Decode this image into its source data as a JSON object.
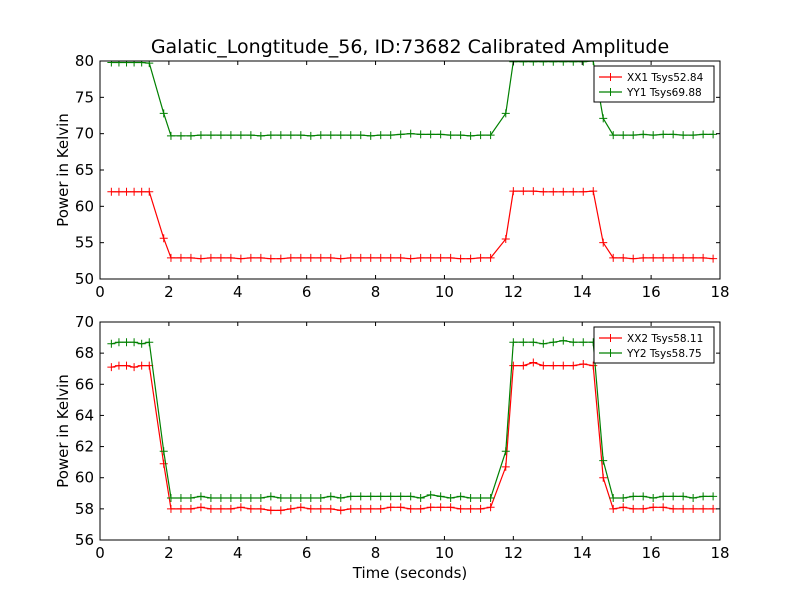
{
  "title": "Galatic_Longtitude_56, ID:73682 Calibrated Amplitude",
  "colors": {
    "xx": "#ff0000",
    "yy": "#008000",
    "frame": "#000000"
  },
  "chart_data": [
    {
      "type": "line",
      "ylabel": "Power in Kelvin",
      "xlabel": "",
      "xlim": [
        0,
        18
      ],
      "ylim": [
        50,
        80
      ],
      "xticks": [
        0,
        2,
        4,
        6,
        8,
        10,
        12,
        14,
        16,
        18
      ],
      "yticks": [
        50,
        55,
        60,
        65,
        70,
        75,
        80
      ],
      "legend_position": "top-right",
      "x": [
        0.33,
        0.55,
        0.77,
        0.99,
        1.21,
        1.43,
        1.85,
        2.06,
        2.35,
        2.64,
        2.93,
        3.22,
        3.51,
        3.8,
        4.09,
        4.38,
        4.67,
        4.96,
        5.25,
        5.54,
        5.83,
        6.12,
        6.41,
        6.7,
        6.99,
        7.28,
        7.57,
        7.86,
        8.15,
        8.44,
        8.73,
        9.02,
        9.31,
        9.6,
        9.89,
        10.18,
        10.47,
        10.76,
        11.05,
        11.34,
        11.78,
        12.0,
        12.29,
        12.58,
        12.87,
        13.16,
        13.45,
        13.74,
        14.03,
        14.32,
        14.61,
        14.9,
        15.19,
        15.48,
        15.77,
        16.06,
        16.35,
        16.64,
        16.93,
        17.22,
        17.51,
        17.8
      ],
      "series": [
        {
          "name": "XX1 Tsys52.84",
          "color": "#ff0000",
          "values": [
            62.0,
            62.0,
            62.0,
            62.0,
            62.0,
            62.0,
            55.6,
            52.9,
            52.9,
            52.9,
            52.8,
            52.9,
            52.9,
            52.9,
            52.8,
            52.9,
            52.9,
            52.8,
            52.8,
            52.9,
            52.9,
            52.9,
            52.9,
            52.9,
            52.8,
            52.9,
            52.9,
            52.9,
            52.9,
            52.9,
            52.9,
            52.8,
            52.9,
            52.9,
            52.9,
            52.9,
            52.8,
            52.8,
            52.9,
            52.9,
            55.5,
            62.1,
            62.1,
            62.1,
            62.0,
            62.0,
            62.0,
            62.0,
            62.0,
            62.1,
            55.0,
            52.9,
            52.9,
            52.8,
            52.9,
            52.9,
            52.9,
            52.9,
            52.9,
            52.9,
            52.9,
            52.8
          ]
        },
        {
          "name": "YY1 Tsys69.88",
          "color": "#008000",
          "values": [
            79.8,
            79.8,
            79.8,
            79.8,
            79.8,
            79.7,
            72.8,
            69.7,
            69.7,
            69.7,
            69.8,
            69.8,
            69.8,
            69.8,
            69.8,
            69.8,
            69.7,
            69.8,
            69.8,
            69.8,
            69.8,
            69.7,
            69.8,
            69.8,
            69.8,
            69.8,
            69.8,
            69.7,
            69.8,
            69.8,
            69.9,
            70.0,
            69.9,
            69.9,
            69.9,
            69.8,
            69.8,
            69.7,
            69.8,
            69.8,
            72.8,
            79.9,
            79.9,
            79.9,
            79.9,
            79.9,
            79.9,
            79.9,
            79.9,
            80.0,
            72.1,
            69.8,
            69.8,
            69.8,
            69.9,
            69.8,
            69.9,
            69.9,
            69.8,
            69.8,
            69.9,
            69.9
          ]
        }
      ]
    },
    {
      "type": "line",
      "ylabel": "Power in Kelvin",
      "xlabel": "Time (seconds)",
      "xlim": [
        0,
        18
      ],
      "ylim": [
        56,
        70
      ],
      "xticks": [
        0,
        2,
        4,
        6,
        8,
        10,
        12,
        14,
        16,
        18
      ],
      "yticks": [
        56,
        58,
        60,
        62,
        64,
        66,
        68,
        70
      ],
      "legend_position": "top-right",
      "x": [
        0.33,
        0.55,
        0.77,
        0.99,
        1.21,
        1.43,
        1.85,
        2.06,
        2.35,
        2.64,
        2.93,
        3.22,
        3.51,
        3.8,
        4.09,
        4.38,
        4.67,
        4.96,
        5.25,
        5.54,
        5.83,
        6.12,
        6.41,
        6.7,
        6.99,
        7.28,
        7.57,
        7.86,
        8.15,
        8.44,
        8.73,
        9.02,
        9.31,
        9.6,
        9.89,
        10.18,
        10.47,
        10.76,
        11.05,
        11.34,
        11.78,
        12.0,
        12.29,
        12.58,
        12.87,
        13.16,
        13.45,
        13.74,
        14.03,
        14.32,
        14.61,
        14.9,
        15.19,
        15.48,
        15.77,
        16.06,
        16.35,
        16.64,
        16.93,
        17.22,
        17.51,
        17.8
      ],
      "series": [
        {
          "name": "XX2 Tsys58.11",
          "color": "#ff0000",
          "values": [
            67.1,
            67.2,
            67.2,
            67.1,
            67.2,
            67.2,
            60.9,
            58.0,
            58.0,
            58.0,
            58.1,
            58.0,
            58.0,
            58.0,
            58.1,
            58.0,
            58.0,
            57.9,
            57.9,
            58.0,
            58.1,
            58.0,
            58.0,
            58.0,
            57.9,
            58.0,
            58.0,
            58.0,
            58.0,
            58.1,
            58.1,
            58.0,
            58.0,
            58.1,
            58.1,
            58.1,
            58.0,
            58.0,
            58.0,
            58.1,
            60.7,
            67.2,
            67.2,
            67.4,
            67.2,
            67.2,
            67.2,
            67.2,
            67.3,
            67.2,
            60.0,
            58.0,
            58.1,
            58.0,
            58.0,
            58.1,
            58.1,
            58.0,
            58.0,
            58.0,
            58.0,
            58.0
          ]
        },
        {
          "name": "YY2 Tsys58.75",
          "color": "#008000",
          "values": [
            68.6,
            68.7,
            68.7,
            68.7,
            68.6,
            68.7,
            61.7,
            58.7,
            58.7,
            58.7,
            58.8,
            58.7,
            58.7,
            58.7,
            58.7,
            58.7,
            58.7,
            58.8,
            58.7,
            58.7,
            58.7,
            58.7,
            58.7,
            58.8,
            58.7,
            58.8,
            58.8,
            58.8,
            58.8,
            58.8,
            58.8,
            58.8,
            58.7,
            58.9,
            58.8,
            58.7,
            58.8,
            58.7,
            58.7,
            58.7,
            61.7,
            68.7,
            68.7,
            68.7,
            68.6,
            68.7,
            68.8,
            68.7,
            68.7,
            68.7,
            61.1,
            58.7,
            58.7,
            58.8,
            58.8,
            58.7,
            58.8,
            58.8,
            58.8,
            58.7,
            58.8,
            58.8
          ]
        }
      ]
    }
  ]
}
